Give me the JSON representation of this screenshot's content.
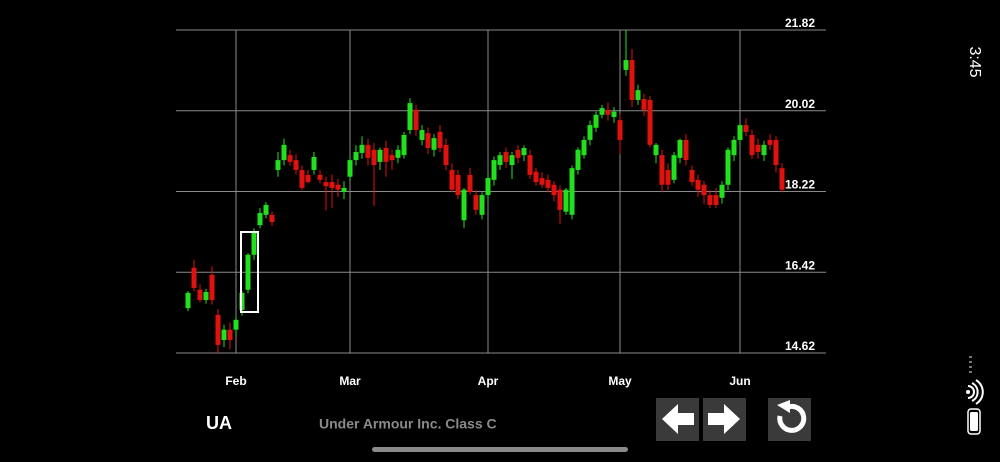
{
  "status_bar": {
    "time": "3:45"
  },
  "footer": {
    "ticker": "UA",
    "name": "Under Armour Inc. Class C"
  },
  "chart_data": {
    "type": "candlestick",
    "categories": [
      null,
      null,
      null,
      null,
      null,
      null,
      null,
      null,
      "Feb",
      null,
      null,
      null,
      null,
      null,
      null,
      null,
      null,
      null,
      null,
      null,
      null,
      null,
      null,
      null,
      null,
      null,
      null,
      "Mar",
      null,
      null,
      null,
      null,
      null,
      null,
      null,
      null,
      null,
      null,
      null,
      null,
      null,
      null,
      null,
      null,
      null,
      null,
      null,
      null,
      null,
      null,
      "Apr",
      null,
      null,
      null,
      null,
      null,
      null,
      null,
      null,
      null,
      null,
      null,
      null,
      null,
      null,
      null,
      null,
      null,
      null,
      null,
      null,
      null,
      "May",
      null,
      null,
      null,
      null,
      null,
      null,
      null,
      null,
      null,
      null,
      null,
      null,
      null,
      null,
      null,
      null,
      null,
      null,
      null,
      "Jun",
      null,
      null,
      null,
      null,
      null,
      null,
      null
    ],
    "open": [
      15.62,
      16.52,
      16.03,
      15.8,
      16.36,
      15.47,
      14.91,
      15.14,
      15.14,
      15.58,
      16.03,
      16.81,
      17.47,
      17.7,
      17.7,
      18.7,
      18.92,
      19.03,
      18.92,
      18.7,
      18.59,
      18.7,
      18.59,
      18.43,
      18.43,
      18.37,
      18.21,
      18.55,
      18.92,
      19.08,
      19.26,
      19.15,
      18.88,
      19.19,
      19.03,
      18.97,
      19.03,
      19.59,
      20.04,
      19.37,
      19.52,
      19.15,
      19.55,
      19.26,
      18.7,
      18.59,
      17.58,
      18.59,
      18.14,
      17.7,
      18.14,
      18.48,
      18.81,
      19.1,
      18.81,
      19.15,
      19.03,
      19.03,
      18.66,
      18.52,
      18.48,
      18.37,
      18.26,
      17.77,
      17.7,
      18.7,
      19.03,
      19.37,
      19.64,
      19.93,
      20.04,
      19.88,
      19.81,
      20.93,
      21.15,
      20.26,
      20.28,
      20.26,
      19.03,
      19.03,
      18.7,
      18.48,
      18.97,
      19.37,
      18.7,
      18.48,
      18.37,
      18.14,
      18.14,
      18.08,
      18.37,
      19.03,
      19.37,
      19.7,
      19.48,
      19.26,
      19.03,
      19.37,
      19.37,
      18.74
    ],
    "high": [
      16.0,
      16.7,
      16.15,
      16.05,
      16.55,
      15.6,
      15.25,
      15.3,
      15.45,
      16.0,
      16.85,
      17.4,
      17.85,
      17.98,
      17.78,
      19.1,
      19.4,
      19.15,
      19.05,
      18.8,
      18.7,
      19.1,
      18.7,
      18.55,
      18.6,
      18.5,
      18.45,
      19.0,
      19.25,
      19.45,
      19.4,
      19.3,
      19.2,
      19.35,
      19.15,
      19.25,
      19.55,
      20.3,
      20.15,
      19.7,
      19.65,
      19.5,
      19.7,
      19.4,
      18.85,
      18.7,
      18.3,
      18.75,
      18.25,
      18.2,
      18.6,
      19.0,
      19.1,
      19.2,
      19.1,
      19.25,
      19.25,
      19.15,
      18.75,
      18.65,
      18.6,
      18.45,
      18.35,
      18.3,
      18.8,
      19.2,
      19.45,
      19.8,
      20.0,
      20.15,
      20.2,
      20.1,
      19.95,
      21.82,
      21.4,
      20.6,
      20.4,
      20.35,
      19.3,
      19.15,
      18.85,
      19.1,
      19.4,
      19.5,
      18.8,
      18.6,
      18.45,
      18.25,
      18.3,
      18.45,
      19.2,
      19.45,
      19.75,
      19.85,
      19.6,
      19.4,
      19.35,
      19.5,
      19.45,
      18.85
    ],
    "low": [
      15.55,
      16.0,
      15.75,
      15.72,
      15.7,
      14.62,
      14.75,
      14.7,
      15.0,
      15.45,
      15.95,
      16.7,
      17.4,
      17.62,
      17.45,
      18.55,
      18.8,
      18.8,
      18.6,
      18.25,
      18.4,
      18.6,
      18.4,
      17.8,
      17.85,
      18.1,
      18.05,
      18.45,
      18.8,
      18.95,
      18.8,
      17.9,
      18.7,
      18.55,
      18.7,
      18.85,
      18.95,
      19.5,
      19.45,
      19.25,
      19.05,
      19.0,
      19.1,
      18.7,
      18.2,
      18.05,
      17.4,
      18.15,
      17.7,
      17.6,
      18.0,
      18.35,
      18.7,
      18.75,
      18.5,
      18.85,
      18.9,
      18.5,
      18.35,
      18.3,
      18.2,
      18.0,
      17.5,
      17.7,
      17.6,
      18.6,
      18.95,
      19.25,
      19.55,
      19.85,
      19.8,
      19.75,
      19.05,
      20.8,
      20.1,
      20.15,
      19.9,
      19.2,
      18.85,
      18.2,
      18.25,
      18.4,
      18.85,
      18.8,
      18.35,
      18.1,
      17.95,
      17.85,
      17.85,
      17.95,
      18.25,
      18.9,
      19.25,
      19.45,
      18.95,
      18.95,
      18.9,
      19.15,
      18.65,
      18.2
    ],
    "close": [
      15.96,
      16.07,
      15.8,
      15.98,
      15.8,
      14.8,
      15.14,
      14.91,
      15.36,
      15.96,
      16.81,
      17.32,
      17.74,
      17.92,
      17.54,
      18.92,
      19.26,
      18.88,
      18.7,
      18.3,
      18.43,
      18.99,
      18.48,
      18.34,
      18.3,
      18.26,
      18.3,
      18.92,
      19.1,
      19.26,
      18.97,
      18.81,
      19.15,
      18.88,
      18.92,
      19.15,
      19.48,
      20.19,
      19.59,
      19.59,
      19.19,
      19.41,
      19.19,
      18.81,
      18.26,
      18.14,
      18.26,
      18.21,
      17.81,
      18.14,
      18.52,
      18.92,
      19.03,
      18.88,
      19.03,
      18.97,
      19.19,
      18.59,
      18.43,
      18.37,
      18.3,
      18.14,
      17.81,
      18.26,
      18.74,
      19.15,
      19.37,
      19.7,
      19.93,
      20.08,
      19.93,
      20.0,
      19.37,
      21.15,
      20.26,
      20.48,
      20.04,
      19.26,
      19.26,
      18.37,
      18.37,
      19.03,
      19.37,
      18.92,
      18.43,
      18.26,
      18.14,
      17.92,
      17.92,
      18.37,
      19.15,
      19.37,
      19.7,
      19.55,
      19.03,
      19.1,
      19.26,
      19.26,
      18.81,
      18.26
    ],
    "up_color": "#22e01e",
    "down_color": "#e0120f",
    "ylim": [
      14.62,
      21.82
    ],
    "yticks": [
      14.62,
      16.42,
      18.22,
      20.02,
      21.82
    ],
    "grid": true
  }
}
